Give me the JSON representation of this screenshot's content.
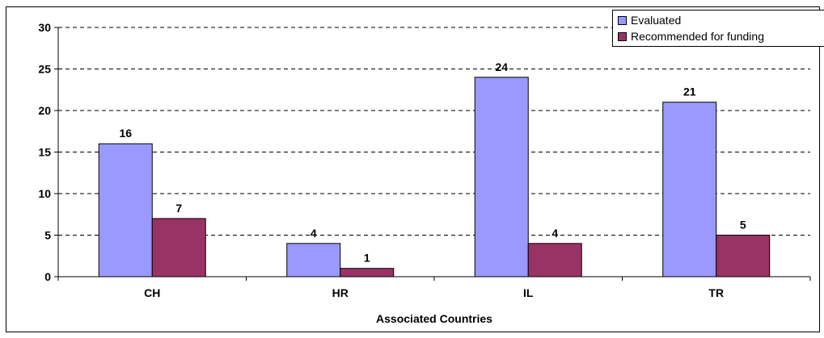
{
  "chart_data": {
    "type": "bar",
    "categories": [
      "CH",
      "HR",
      "IL",
      "TR"
    ],
    "series": [
      {
        "name": "Evaluated",
        "values": [
          16,
          4,
          24,
          21
        ],
        "color": "#9999ff"
      },
      {
        "name": "Recommended for funding",
        "values": [
          7,
          1,
          4,
          5
        ],
        "color": "#993366"
      }
    ],
    "title": "",
    "xlabel": "Associated Countries",
    "ylabel": "",
    "ylim": [
      0,
      30
    ],
    "yticks": [
      0,
      5,
      10,
      15,
      20,
      25,
      30
    ],
    "grid": true,
    "legend_position": "top-right",
    "data_labels": true
  }
}
